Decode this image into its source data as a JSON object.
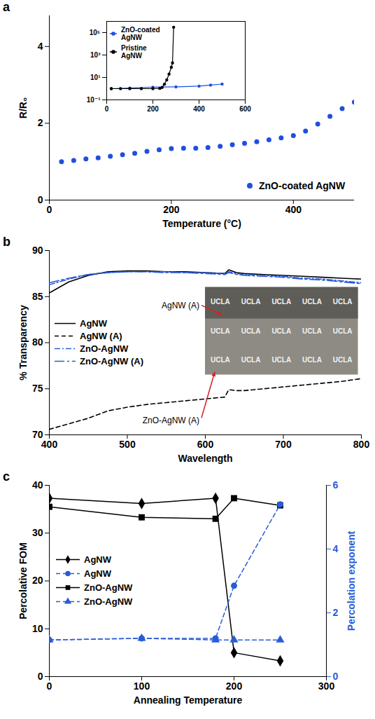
{
  "chart_data": [
    {
      "panel": "a",
      "type": "scatter",
      "x_label": "Temperature (°C)",
      "y_label": "R/R₀",
      "x": [
        20,
        40,
        60,
        80,
        100,
        120,
        140,
        160,
        180,
        200,
        220,
        240,
        260,
        280,
        300,
        320,
        340,
        360,
        380,
        400,
        420,
        440,
        460,
        480,
        500
      ],
      "series": [
        {
          "name": "ZnO-coated AgNW",
          "color": "#1f4fe0",
          "marker": "circle",
          "values": [
            1.0,
            1.03,
            1.07,
            1.1,
            1.14,
            1.18,
            1.22,
            1.27,
            1.31,
            1.34,
            1.35,
            1.35,
            1.37,
            1.4,
            1.44,
            1.48,
            1.52,
            1.57,
            1.62,
            1.68,
            1.8,
            1.98,
            2.18,
            2.38,
            2.55
          ]
        }
      ],
      "xlim": [
        0,
        500
      ],
      "xticks": [
        0,
        200,
        400
      ],
      "ylim": [
        0,
        4.8
      ],
      "yticks": [
        0,
        2,
        4
      ],
      "legend": "bottom-right"
    },
    {
      "type": "line",
      "log": "y",
      "series": [
        {
          "name": "ZnO-coated AgNW",
          "color": "#1f4fe0",
          "marker": "circle",
          "x": [
            20,
            100,
            200,
            300,
            400,
            450,
            500
          ],
          "values": [
            1,
            1.14,
            1.34,
            1.44,
            1.68,
            2.08,
            2.55
          ]
        },
        {
          "name": "Pristine AgNW",
          "color": "#000000",
          "marker": "circle",
          "x": [
            20,
            60,
            100,
            150,
            200,
            230,
            240,
            250,
            260,
            270,
            280,
            285,
            290
          ],
          "values": [
            1,
            1,
            1,
            1,
            1,
            1.05,
            1.3,
            2.5,
            6,
            20,
            80,
            200,
            300000
          ]
        }
      ],
      "xlim": [
        0,
        600
      ],
      "xticks": [
        0,
        200,
        400,
        600
      ],
      "ylim": [
        0.1,
        1000000
      ],
      "yticks": [
        {
          "value": 0.1,
          "label": "10⁻¹"
        },
        {
          "value": 10,
          "label": "10¹"
        },
        {
          "value": 1000,
          "label": "10³"
        },
        {
          "value": 100000,
          "label": "10⁵"
        }
      ],
      "legend": "top-left"
    },
    {
      "panel": "b",
      "type": "line",
      "x_label": "Wavelength",
      "y_label": "% Transparency",
      "x": [
        400,
        425,
        450,
        475,
        500,
        525,
        550,
        575,
        600,
        625,
        630,
        640,
        650,
        675,
        700,
        725,
        750,
        775,
        800
      ],
      "series": [
        {
          "name": "AgNW",
          "color": "#000000",
          "line_style": "solid",
          "values": [
            85.4,
            86.6,
            87.3,
            87.7,
            87.8,
            87.8,
            87.7,
            87.7,
            87.6,
            87.5,
            87.9,
            87.6,
            87.5,
            87.4,
            87.3,
            87.2,
            87.1,
            87.0,
            86.9
          ]
        },
        {
          "name": "AgNW (A)",
          "color": "#000000",
          "line_style": "dashed",
          "values": [
            70.6,
            71.2,
            71.8,
            72.6,
            73.0,
            73.3,
            73.5,
            73.7,
            73.9,
            74.1,
            74.9,
            74.8,
            74.8,
            75.0,
            75.2,
            75.4,
            75.6,
            75.8,
            76.1
          ]
        },
        {
          "name": "ZnO-AgNW",
          "color": "#2a5bd7",
          "line_style": "dashdot",
          "values": [
            86.3,
            86.9,
            87.4,
            87.6,
            87.7,
            87.7,
            87.7,
            87.6,
            87.6,
            87.5,
            87.7,
            87.5,
            87.4,
            87.3,
            87.2,
            87.0,
            86.9,
            86.7,
            86.5
          ]
        },
        {
          "name": "ZnO-AgNW (A)",
          "color": "#2a5bd7",
          "line_style": "longdashdot",
          "values": [
            86.5,
            87.0,
            87.4,
            87.6,
            87.7,
            87.7,
            87.6,
            87.6,
            87.5,
            87.4,
            87.6,
            87.4,
            87.3,
            87.2,
            87.1,
            86.9,
            86.8,
            86.6,
            86.4
          ]
        }
      ],
      "xlim": [
        400,
        800
      ],
      "xticks": [
        400,
        500,
        600,
        700,
        800
      ],
      "ylim": [
        70,
        90
      ],
      "yticks": [
        70,
        75,
        80,
        85,
        90
      ],
      "legend": "center-left",
      "annotations": [
        "AgNW (A)",
        "ZnO-AgNW (A)"
      ],
      "photo_text": "UCLA"
    },
    {
      "panel": "c",
      "type": "line",
      "x_label": "Annealing Temperature",
      "y_label": "Percolative FOM",
      "y2_label": "Percolation exponent",
      "x": [
        0,
        100,
        180,
        200,
        250
      ],
      "series": [
        {
          "name": "AgNW",
          "color": "#000000",
          "marker": "diamond",
          "line_style": "solid",
          "values": [
            37.3,
            36.2,
            37.3,
            5.0,
            3.3
          ]
        },
        {
          "name": "AgNW",
          "color": "#2a5bd7",
          "marker": "circle",
          "line_style": "dashed",
          "axis": "y2",
          "values": [
            1.15,
            1.2,
            1.2,
            2.85,
            5.4
          ]
        },
        {
          "name": "ZnO-AgNW",
          "color": "#000000",
          "marker": "square",
          "line_style": "solid",
          "values": [
            35.5,
            33.3,
            33.0,
            37.3,
            35.8
          ]
        },
        {
          "name": "ZnO-AgNW",
          "color": "#2a5bd7",
          "marker": "triangle",
          "line_style": "dashed",
          "axis": "y2",
          "values": [
            1.15,
            1.2,
            1.15,
            1.15,
            1.15
          ]
        }
      ],
      "xlim": [
        0,
        300
      ],
      "xticks": [
        0,
        100,
        200,
        300
      ],
      "ylim": [
        0,
        40
      ],
      "yticks": [
        0,
        10,
        20,
        30,
        40
      ],
      "y2lim": [
        0,
        6
      ],
      "y2ticks": [
        0,
        2,
        4,
        6
      ],
      "legend": "center-left"
    }
  ]
}
